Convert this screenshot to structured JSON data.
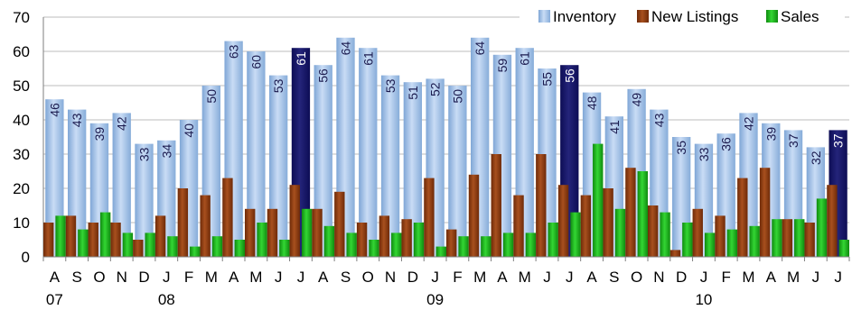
{
  "chart_data": {
    "type": "bar",
    "title": "",
    "xlabel": "",
    "ylabel": "",
    "ylim": [
      0,
      70
    ],
    "yticks": [
      0,
      10,
      20,
      30,
      40,
      50,
      60,
      70
    ],
    "grid": "horizontal",
    "legend_position": "top-right",
    "categories": [
      "A",
      "S",
      "O",
      "N",
      "D",
      "J",
      "F",
      "M",
      "A",
      "M",
      "J",
      "J",
      "A",
      "S",
      "O",
      "N",
      "D",
      "J",
      "F",
      "M",
      "A",
      "M",
      "J",
      "J",
      "A",
      "S",
      "O",
      "N",
      "D",
      "J",
      "F",
      "M",
      "A",
      "M",
      "J",
      "J"
    ],
    "year_labels": [
      {
        "index": 0,
        "text": "07"
      },
      {
        "index": 5,
        "text": "08"
      },
      {
        "index": 17,
        "text": "09"
      },
      {
        "index": 29,
        "text": "10"
      }
    ],
    "highlighted_indices": [
      11,
      23,
      35
    ],
    "series": [
      {
        "name": "Inventory",
        "color": "#a9c8ee",
        "highlight_color": "#1a1a6e",
        "values": [
          46,
          43,
          39,
          42,
          33,
          34,
          40,
          50,
          63,
          60,
          53,
          61,
          56,
          64,
          61,
          53,
          51,
          52,
          50,
          64,
          59,
          61,
          55,
          56,
          48,
          41,
          49,
          43,
          35,
          33,
          36,
          42,
          39,
          37,
          32,
          37
        ]
      },
      {
        "name": "New Listings",
        "color": "#8b3a0f",
        "values": [
          10,
          12,
          10,
          10,
          5,
          12,
          20,
          18,
          23,
          14,
          14,
          21,
          14,
          19,
          10,
          12,
          11,
          23,
          8,
          24,
          30,
          18,
          30,
          21,
          18,
          20,
          26,
          15,
          2,
          14,
          12,
          23,
          26,
          11,
          10,
          21
        ]
      },
      {
        "name": "Sales",
        "color": "#1fb31f",
        "values": [
          12,
          8,
          13,
          7,
          7,
          6,
          3,
          6,
          5,
          10,
          5,
          14,
          9,
          7,
          5,
          7,
          10,
          3,
          6,
          6,
          7,
          7,
          10,
          13,
          33,
          14,
          25,
          13,
          10,
          7,
          8,
          9,
          11,
          11,
          17,
          5
        ]
      }
    ]
  }
}
